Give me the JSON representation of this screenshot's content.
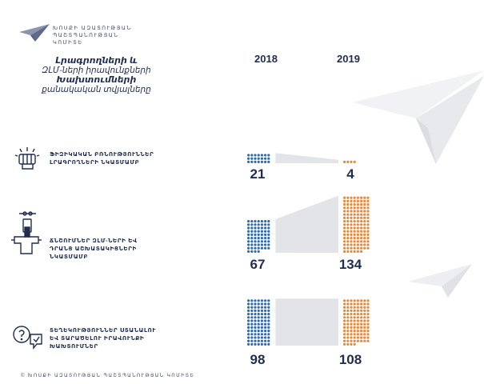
{
  "org": {
    "name_lines": [
      "ԽՈՍՔԻ ԱԶԱՏՈՒԹՅԱՆ",
      "ՊԱՇՏՊԱՆՈՒԹՅԱՆ",
      "ԿՈՄԻՏԵ"
    ]
  },
  "title_lines": [
    "Լրագրողների և",
    "ԶԼՄ-ների իրավունքների",
    "Խախտումների",
    "քանակական տվյալները"
  ],
  "footer": "© ԽՈՍՔԻ ԱԶԱՏՈՒԹՅԱՆ ՊԱՇՏՊԱՆՈՒԹՅԱՆ ԿՈՄԻՏԵ",
  "icons": [
    "fist-icon",
    "microphone-stand-icon",
    "question-chat-icon",
    "paper-plane-icon"
  ],
  "colors": {
    "series_2018": "#2f6bb0",
    "series_2019": "#e8893a",
    "text": "#1f2d4f",
    "connector": "#e3e4e8"
  },
  "chart_data": {
    "type": "bar",
    "categories": [
      "ՖԻԶԻԿԱԿԱՆ ԲՌՆՈՒԹՅՈՒՆՆԵՐ ԼՐԱԳՐՈՂՆԵՐԻ ՆԿԱՏՄԱՄԲ",
      "ՃՆՇՈՒՄՆԵՐ ԶԼՄ-ՆԵՐԻ ԵՎ ԴՐԱՆՑ ԱՇԽԱՏԱԿԻՑՆԵՐԻ ՆԿԱՏՄԱՄԲ",
      "ՏԵՂԵԿՈՒԹՅՈՒՆՆԵՐ ՍՏԱՆԱԼՈՒ ԵՎ ՏԱՐԱԾԵԼՈՒ ԻՐԱՎՈՒՆՔԻ ԽԱԽՏՈՒՄՆԵՐ"
    ],
    "category_label_lines": [
      [
        "ՖԻԶԻԿԱԿԱՆ ԲՌՆՈՒԹՅՈՒՆՆԵՐ",
        "ԼՐԱԳՐՈՂՆԵՐԻ ՆԿԱՏՄԱՄԲ"
      ],
      [
        "ՃՆՇՈՒՄՆԵՐ ԶԼՄ-ՆԵՐԻ ԵՎ",
        "ԴՐԱՆՑ ԱՇԽԱՏԱԿԻՑՆԵՐԻ",
        "ՆԿԱՏՄԱՄԲ"
      ],
      [
        "ՏԵՂԵԿՈՒԹՅՈՒՆՆԵՐ ՍՏԱՆԱԼՈՒ",
        "ԵՎ ՏԱՐԱԾԵԼՈՒ ԻՐԱՎՈՒՆՔԻ",
        "ԽԱԽՏՈՒՄՆԵՐ"
      ]
    ],
    "series": [
      {
        "name": "2018",
        "values": [
          21,
          67,
          98
        ]
      },
      {
        "name": "2019",
        "values": [
          4,
          134,
          108
        ]
      }
    ],
    "dot_columns": {
      "2018": 7,
      "2019": 8
    }
  }
}
